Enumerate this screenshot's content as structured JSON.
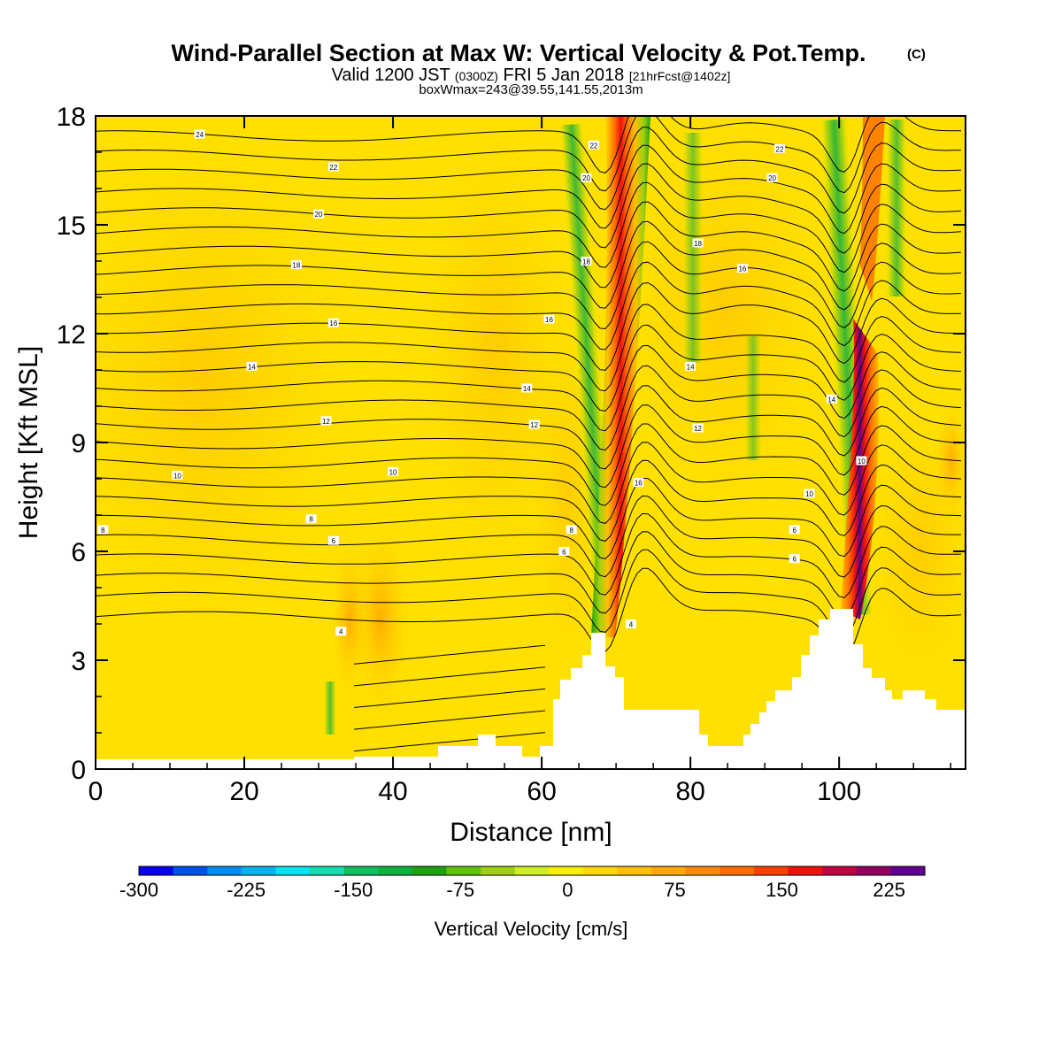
{
  "chart_data": {
    "type": "contour",
    "title": "Wind-Parallel Section at Max W: Vertical Velocity & Pot.Temp.",
    "title_mark": "(C)",
    "subtitle": {
      "valid_prefix": "Valid 1200 JST",
      "zulu": "(0300Z)",
      "date": "FRI 5 Jan 2018",
      "forecast": "[21hrFcst@1402z]"
    },
    "info_line": "boxWmax=243@39.55,141.55,2013m",
    "xlabel": "Distance [nm]",
    "ylabel": "Height [Kft MSL]",
    "xlim": [
      0,
      117
    ],
    "ylim": [
      0,
      18
    ],
    "x_ticks": [
      0,
      20,
      40,
      60,
      80,
      100
    ],
    "y_ticks": [
      0,
      3,
      6,
      9,
      12,
      15,
      18
    ],
    "colorbar": {
      "label": "Vertical Velocity [cm/s]",
      "min": -300,
      "max": 250,
      "step": 25,
      "tick_labels": [
        -300,
        -225,
        -150,
        -75,
        0,
        75,
        150,
        225
      ],
      "colors": [
        "#0a00f0",
        "#0050f0",
        "#008cf0",
        "#00b4f0",
        "#00e6f0",
        "#10e0b0",
        "#10c060",
        "#10b040",
        "#20a010",
        "#60c010",
        "#a0d010",
        "#d0f020",
        "#f8f000",
        "#ffd800",
        "#ffc000",
        "#ffa800",
        "#ff8c00",
        "#ff6c00",
        "#ff4000",
        "#f01010",
        "#c00040",
        "#900060",
        "#600090"
      ]
    },
    "updraft_cores": [
      {
        "x": 70,
        "z_bottom": 4,
        "z_top": 18,
        "peak": 150
      },
      {
        "x": 103,
        "z_bottom": 5,
        "z_top": 11,
        "peak": 243
      }
    ],
    "theta_contour_labels": [
      {
        "label": "24",
        "x": 14,
        "z": 17.5
      },
      {
        "label": "22",
        "x": 32,
        "z": 16.6
      },
      {
        "label": "20",
        "x": 30,
        "z": 15.3
      },
      {
        "label": "18",
        "x": 27,
        "z": 13.9
      },
      {
        "label": "16",
        "x": 32,
        "z": 12.3
      },
      {
        "label": "14",
        "x": 21,
        "z": 11.1
      },
      {
        "label": "12",
        "x": 31,
        "z": 9.6
      },
      {
        "label": "10",
        "x": 11,
        "z": 8.1
      },
      {
        "label": "8",
        "x": 1,
        "z": 6.6
      },
      {
        "label": "8",
        "x": 29,
        "z": 6.9
      },
      {
        "label": "6",
        "x": 32,
        "z": 6.3
      },
      {
        "label": "4",
        "x": 33,
        "z": 3.8
      },
      {
        "label": "10",
        "x": 40,
        "z": 8.2
      },
      {
        "label": "16",
        "x": 61,
        "z": 12.4
      },
      {
        "label": "14",
        "x": 58,
        "z": 10.5
      },
      {
        "label": "12",
        "x": 59,
        "z": 9.5
      },
      {
        "label": "8",
        "x": 64,
        "z": 6.6
      },
      {
        "label": "6",
        "x": 63,
        "z": 6.0
      },
      {
        "label": "22",
        "x": 67,
        "z": 17.2
      },
      {
        "label": "20",
        "x": 66,
        "z": 16.3
      },
      {
        "label": "18",
        "x": 66,
        "z": 14.0
      },
      {
        "label": "16",
        "x": 73,
        "z": 7.9
      },
      {
        "label": "4",
        "x": 72,
        "z": 4.0
      },
      {
        "label": "18",
        "x": 81,
        "z": 14.5
      },
      {
        "label": "16",
        "x": 87,
        "z": 13.8
      },
      {
        "label": "14",
        "x": 80,
        "z": 11.1
      },
      {
        "label": "12",
        "x": 81,
        "z": 9.4
      },
      {
        "label": "22",
        "x": 92,
        "z": 17.1
      },
      {
        "label": "20",
        "x": 91,
        "z": 16.3
      },
      {
        "label": "14",
        "x": 99,
        "z": 10.2
      },
      {
        "label": "10",
        "x": 96,
        "z": 7.6
      },
      {
        "label": "6",
        "x": 94,
        "z": 6.6
      },
      {
        "label": "6",
        "x": 94,
        "z": 5.8
      },
      {
        "label": "10",
        "x": 103,
        "z": 8.5
      }
    ]
  }
}
